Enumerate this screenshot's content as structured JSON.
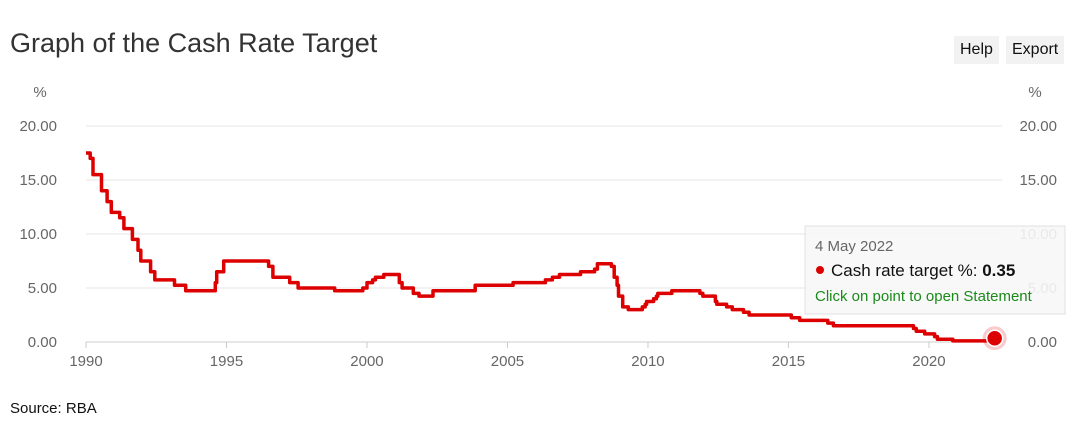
{
  "title": "Graph of the Cash Rate Target",
  "toolbar": {
    "help_label": "Help",
    "export_label": "Export"
  },
  "source": "Source: RBA",
  "tooltip": {
    "date": "4 May 2022",
    "series_label": "Cash rate target %: ",
    "value": "0.35",
    "link": "Click on point to open Statement"
  },
  "colors": {
    "line": "#dd0000",
    "grid": "#e6e6e6",
    "link": "#1a8a1a"
  },
  "chart_data": {
    "type": "line",
    "title": "Graph of the Cash Rate Target",
    "ylabel": "%",
    "ylim": [
      0,
      20
    ],
    "xlim": [
      1990,
      2022.6
    ],
    "y_ticks": [
      "0.00",
      "5.00",
      "10.00",
      "15.00",
      "20.00"
    ],
    "x_ticks": [
      "1990",
      "1995",
      "2000",
      "2005",
      "2010",
      "2015",
      "2020"
    ],
    "grid": true,
    "series": [
      {
        "name": "Cash rate target %",
        "values": [
          [
            1990.0,
            17.5
          ],
          [
            1990.15,
            17.0
          ],
          [
            1990.25,
            15.5
          ],
          [
            1990.55,
            14.0
          ],
          [
            1990.75,
            13.0
          ],
          [
            1990.9,
            12.0
          ],
          [
            1991.2,
            11.5
          ],
          [
            1991.35,
            10.5
          ],
          [
            1991.65,
            9.5
          ],
          [
            1991.85,
            8.5
          ],
          [
            1991.95,
            7.5
          ],
          [
            1992.3,
            6.5
          ],
          [
            1992.45,
            5.75
          ],
          [
            1993.15,
            5.25
          ],
          [
            1993.55,
            4.75
          ],
          [
            1994.6,
            5.5
          ],
          [
            1994.65,
            6.5
          ],
          [
            1994.9,
            7.5
          ],
          [
            1996.5,
            7.0
          ],
          [
            1996.65,
            6.0
          ],
          [
            1997.25,
            5.5
          ],
          [
            1997.55,
            5.0
          ],
          [
            1998.85,
            4.75
          ],
          [
            1999.85,
            5.0
          ],
          [
            2000.0,
            5.5
          ],
          [
            2000.2,
            5.75
          ],
          [
            2000.3,
            6.0
          ],
          [
            2000.6,
            6.25
          ],
          [
            2001.15,
            5.5
          ],
          [
            2001.25,
            5.0
          ],
          [
            2001.65,
            4.5
          ],
          [
            2001.85,
            4.25
          ],
          [
            2002.35,
            4.75
          ],
          [
            2003.85,
            5.25
          ],
          [
            2005.2,
            5.5
          ],
          [
            2006.35,
            5.75
          ],
          [
            2006.6,
            6.0
          ],
          [
            2006.85,
            6.25
          ],
          [
            2007.6,
            6.5
          ],
          [
            2008.1,
            6.75
          ],
          [
            2008.2,
            7.25
          ],
          [
            2008.7,
            7.0
          ],
          [
            2008.8,
            6.0
          ],
          [
            2008.9,
            5.25
          ],
          [
            2008.95,
            4.25
          ],
          [
            2009.1,
            3.25
          ],
          [
            2009.3,
            3.0
          ],
          [
            2009.8,
            3.25
          ],
          [
            2009.9,
            3.5
          ],
          [
            2009.95,
            3.75
          ],
          [
            2010.2,
            4.0
          ],
          [
            2010.3,
            4.25
          ],
          [
            2010.35,
            4.5
          ],
          [
            2010.85,
            4.75
          ],
          [
            2011.85,
            4.5
          ],
          [
            2011.95,
            4.25
          ],
          [
            2012.4,
            3.75
          ],
          [
            2012.45,
            3.5
          ],
          [
            2012.8,
            3.25
          ],
          [
            2013.0,
            3.0
          ],
          [
            2013.4,
            2.75
          ],
          [
            2013.6,
            2.5
          ],
          [
            2015.1,
            2.25
          ],
          [
            2015.4,
            2.0
          ],
          [
            2016.4,
            1.75
          ],
          [
            2016.6,
            1.5
          ],
          [
            2019.45,
            1.25
          ],
          [
            2019.55,
            1.0
          ],
          [
            2019.85,
            0.75
          ],
          [
            2020.2,
            0.5
          ],
          [
            2020.3,
            0.25
          ],
          [
            2020.85,
            0.1
          ],
          [
            2022.34,
            0.35
          ]
        ]
      }
    ],
    "highlight": {
      "x": 2022.34,
      "y": 0.35
    }
  }
}
